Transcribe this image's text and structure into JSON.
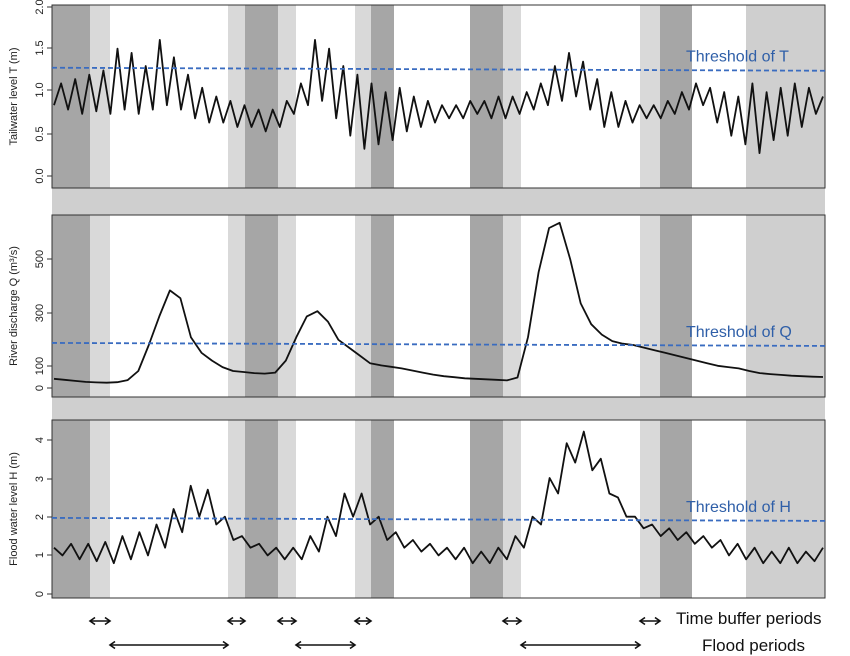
{
  "legend": {
    "buffer_label": "Time buffer periods",
    "flood_label": "Flood periods"
  },
  "colors": {
    "series": "#111111",
    "threshold": "#3a6cc0",
    "threshold_text": "#2f5fa8",
    "buffer_shade": "#d9d9d9",
    "flood_shade": "#a6a6a6",
    "outer_shade": "#cfcfcf"
  },
  "chart_data": [
    {
      "type": "line",
      "ylabel": "Tailwater level T (m)",
      "ylim": [
        -0.1,
        2.0
      ],
      "yticks": [
        "0.0",
        "0.5",
        "1.0",
        "1.5",
        "2.0"
      ],
      "threshold": {
        "label": "Threshold of T",
        "value": 1.28
      },
      "series": [
        {
          "values": [
            0.85,
            1.1,
            0.8,
            1.15,
            0.75,
            1.2,
            0.78,
            1.25,
            0.75,
            1.5,
            0.8,
            1.45,
            0.75,
            1.3,
            0.8,
            1.6,
            0.85,
            1.4,
            0.8,
            1.2,
            0.7,
            1.05,
            0.65,
            0.95,
            0.65,
            0.9,
            0.6,
            0.85,
            0.6,
            0.8,
            0.55,
            0.8,
            0.6,
            0.9,
            0.75,
            1.1,
            0.85,
            1.6,
            0.9,
            1.5,
            0.7,
            1.3,
            0.5,
            1.2,
            0.35,
            1.1,
            0.4,
            1.0,
            0.45,
            1.05,
            0.55,
            0.95,
            0.6,
            0.9,
            0.65,
            0.85,
            0.7,
            0.85,
            0.7,
            0.9,
            0.75,
            0.9,
            0.7,
            0.95,
            0.7,
            0.95,
            0.75,
            1.0,
            0.8,
            1.1,
            0.85,
            1.3,
            0.9,
            1.45,
            0.95,
            1.35,
            0.8,
            1.15,
            0.6,
            1.0,
            0.6,
            0.9,
            0.65,
            0.85,
            0.7,
            0.85,
            0.7,
            0.9,
            0.75,
            1.0,
            0.8,
            1.1,
            0.85,
            1.05,
            0.65,
            1.0,
            0.5,
            0.95,
            0.4,
            1.1,
            0.3,
            1.0,
            0.45,
            1.05,
            0.5,
            1.1,
            0.6,
            1.05,
            0.75,
            0.95
          ]
        }
      ]
    },
    {
      "type": "line",
      "ylabel": "River discharge  Q (m³/s)",
      "ylim": [
        -30,
        670
      ],
      "yticks": [
        "0",
        "100",
        "300",
        "500"
      ],
      "threshold": {
        "label": "Threshold of Q",
        "value": 178
      },
      "series": [
        {
          "values": [
            40,
            36,
            32,
            28,
            26,
            25,
            27,
            35,
            70,
            170,
            280,
            380,
            350,
            200,
            140,
            110,
            85,
            70,
            66,
            62,
            60,
            64,
            110,
            200,
            280,
            300,
            260,
            190,
            160,
            130,
            100,
            92,
            86,
            80,
            72,
            64,
            56,
            50,
            46,
            42,
            40,
            38,
            36,
            34,
            45,
            200,
            450,
            620,
            640,
            500,
            330,
            250,
            210,
            185,
            175,
            170,
            160,
            150,
            140,
            130,
            120,
            110,
            100,
            90,
            85,
            80,
            70,
            62,
            58,
            55,
            52,
            50,
            48,
            47
          ]
        }
      ]
    },
    {
      "type": "line",
      "ylabel": "Flood water level H (m)",
      "ylim": [
        -0.1,
        4.5
      ],
      "yticks": [
        "0",
        "1",
        "2",
        "3",
        "4"
      ],
      "threshold": {
        "label": "Threshold of H",
        "value": 1.97
      },
      "series": [
        {
          "values": [
            1.2,
            1.0,
            1.3,
            0.9,
            1.3,
            0.85,
            1.35,
            0.8,
            1.5,
            0.9,
            1.6,
            1.0,
            1.8,
            1.2,
            2.2,
            1.6,
            2.8,
            2.0,
            2.7,
            1.8,
            2.0,
            1.4,
            1.5,
            1.2,
            1.3,
            1.0,
            1.2,
            0.9,
            1.2,
            0.9,
            1.5,
            1.1,
            2.0,
            1.5,
            2.6,
            2.0,
            2.6,
            1.8,
            2.0,
            1.4,
            1.6,
            1.2,
            1.4,
            1.1,
            1.3,
            1.0,
            1.2,
            0.9,
            1.2,
            0.8,
            1.1,
            0.8,
            1.2,
            0.9,
            1.5,
            1.2,
            2.0,
            1.8,
            3.0,
            2.6,
            3.9,
            3.4,
            4.2,
            3.2,
            3.5,
            2.6,
            2.5,
            2.0,
            2.0,
            1.7,
            1.8,
            1.5,
            1.7,
            1.4,
            1.6,
            1.3,
            1.5,
            1.2,
            1.4,
            1.0,
            1.3,
            0.9,
            1.2,
            0.8,
            1.1,
            0.8,
            1.2,
            0.8,
            1.1,
            0.85,
            1.2
          ]
        }
      ]
    }
  ]
}
